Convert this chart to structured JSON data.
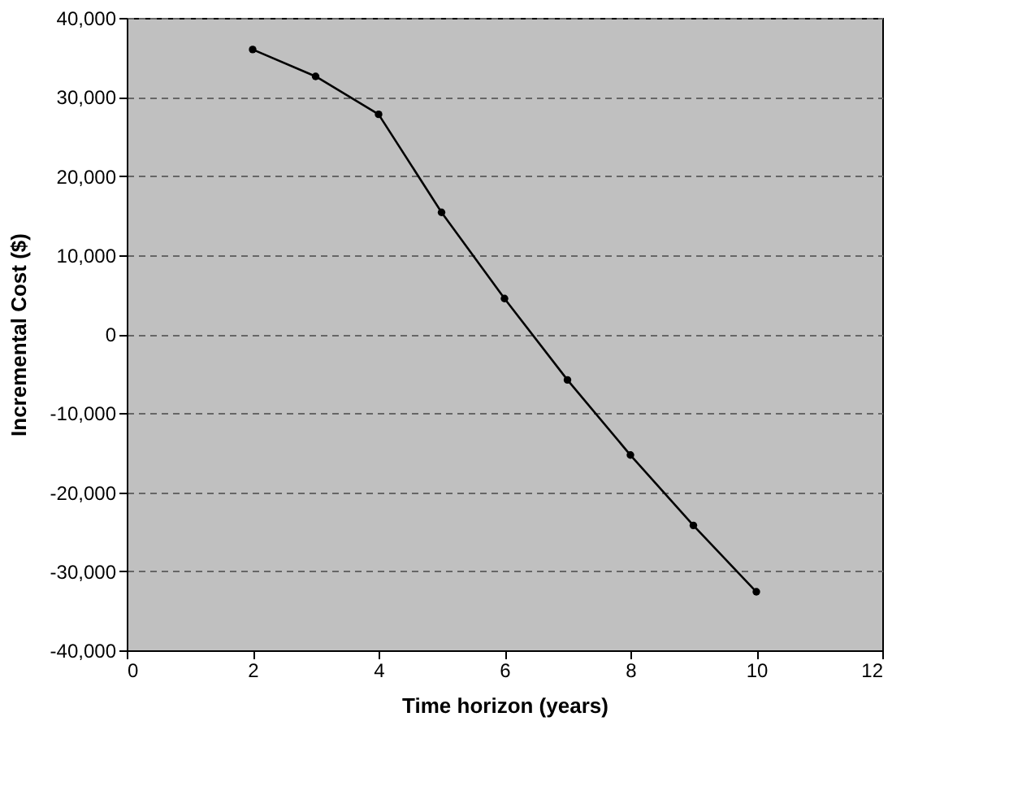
{
  "chart_data": {
    "type": "line",
    "xlabel": "Time horizon (years)",
    "ylabel": "Incremental Cost ($)",
    "x": [
      2,
      3,
      4,
      5,
      6,
      7,
      8,
      9,
      10
    ],
    "series": [
      {
        "color": "#000000",
        "values": [
          36000,
          32600,
          27800,
          15400,
          4500,
          -5800,
          -15300,
          -24200,
          -32600
        ]
      }
    ],
    "xlim": [
      0,
      12
    ],
    "xticks": [
      0,
      2,
      4,
      6,
      8,
      10,
      12
    ],
    "ylim": [
      -40000,
      40000
    ],
    "yticks": [
      {
        "value": -40000,
        "label": "-40,000"
      },
      {
        "value": -30000,
        "label": "-30,000"
      },
      {
        "value": -20000,
        "label": "-20,000"
      },
      {
        "value": -10000,
        "label": "-10,000"
      },
      0,
      {
        "value": 10000,
        "label": "10,000"
      },
      {
        "value": 20000,
        "label": "20,000"
      },
      {
        "value": 30000,
        "label": "30,000"
      },
      {
        "value": 40000,
        "label": "40,000"
      }
    ],
    "grid": "y",
    "line_style": "solid",
    "marker": "circle"
  }
}
